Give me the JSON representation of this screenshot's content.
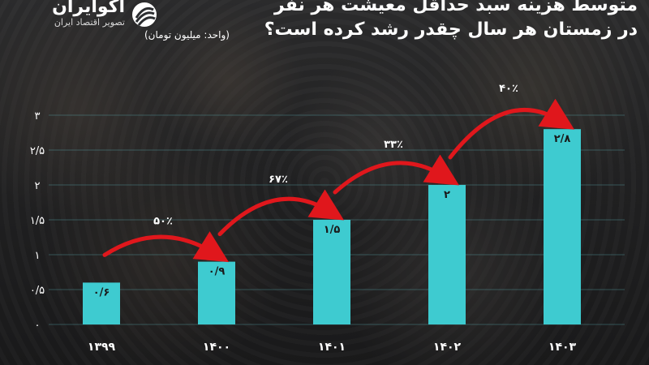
{
  "brand": {
    "name": "اکوایران",
    "tagline": "تصویر اقتصاد ایران",
    "mark_icon": "swirl-logo-icon"
  },
  "header": {
    "title": "متوسط هزینه سبد حداقل معیشت هر نفر",
    "subtitle": "در زمستان هر سال چقدر رشد کرده است؟",
    "unit": "(واحد: میلیون تومان)"
  },
  "colors": {
    "bar": "#3ecbd0",
    "arrow": "#e0171c",
    "text": "#ffffff",
    "grid": "#5fb8bd"
  },
  "chart_data": {
    "type": "bar",
    "categories": [
      "۱۳۹۹",
      "۱۴۰۰",
      "۱۴۰۱",
      "۱۴۰۲",
      "۱۴۰۳"
    ],
    "values": [
      0.6,
      0.9,
      1.5,
      2.0,
      2.8
    ],
    "value_labels": [
      "۰/۶",
      "۰/۹",
      "۱/۵",
      "۲",
      "۲/۸"
    ],
    "growth_labels": [
      "۵۰٪",
      "۶۷٪",
      "۳۳٪",
      "۴۰٪"
    ],
    "ylim": [
      0,
      3
    ],
    "yticks": [
      0,
      0.5,
      1,
      1.5,
      2,
      2.5,
      3
    ],
    "ytick_labels": [
      "۰",
      "۰/۵",
      "۱",
      "۱/۵",
      "۲",
      "۲/۵",
      "۳"
    ],
    "grid": true,
    "xlabel": "",
    "ylabel": ""
  }
}
